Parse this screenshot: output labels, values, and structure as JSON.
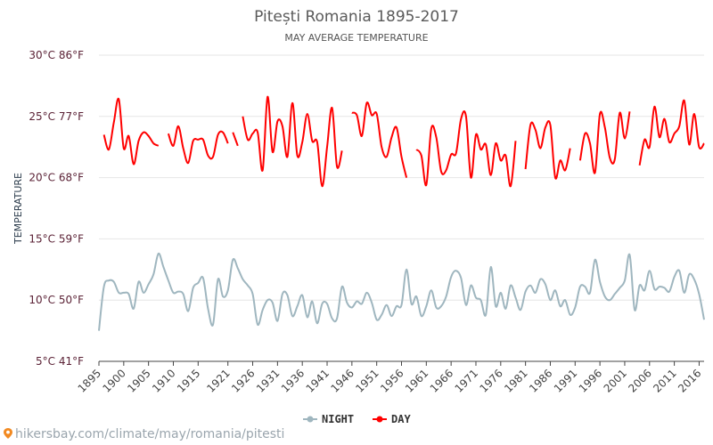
{
  "chart_data": {
    "type": "line",
    "title": "Pitești Romania 1895-2017",
    "subtitle": "MAY AVERAGE TEMPERATURE",
    "ylabel": "TEMPERATURE",
    "ylim": [
      5,
      30
    ],
    "xlim": [
      1895,
      2017
    ],
    "y_ticks": [
      {
        "value": 30,
        "label": "30°C 86°F"
      },
      {
        "value": 25,
        "label": "25°C 77°F"
      },
      {
        "value": 20,
        "label": "20°C 68°F"
      },
      {
        "value": 15,
        "label": "15°C 59°F"
      },
      {
        "value": 10,
        "label": "10°C 50°F"
      },
      {
        "value": 5,
        "label": "5°C 41°F"
      }
    ],
    "x_ticks": [
      "1895",
      "1900",
      "1905",
      "1910",
      "1915",
      "1921",
      "1926",
      "1931",
      "1936",
      "1941",
      "1946",
      "1951",
      "1956",
      "1961",
      "1966",
      "1971",
      "1976",
      "1981",
      "1986",
      "1991",
      "1996",
      "2001",
      "2006",
      "2011",
      "2016"
    ],
    "legend_position": "bottom-center",
    "grid": true,
    "series": [
      {
        "name": "NIGHT",
        "color": "#9fb6bf",
        "x": [
          1895,
          1896,
          1897,
          1898,
          1899,
          1900,
          1901,
          1902,
          1903,
          1904,
          1905,
          1906,
          1907,
          1908,
          1909,
          1910,
          1911,
          1912,
          1913,
          1914,
          1915,
          1916,
          1917,
          1918,
          1919,
          1920,
          1921,
          1922,
          1923,
          1924,
          1925,
          1926,
          1927,
          1928,
          1929,
          1930,
          1931,
          1932,
          1933,
          1934,
          1935,
          1936,
          1937,
          1938,
          1939,
          1940,
          1941,
          1942,
          1943,
          1944,
          1945,
          1946,
          1947,
          1948,
          1949,
          1950,
          1951,
          1952,
          1953,
          1954,
          1955,
          1956,
          1957,
          1958,
          1959,
          1960,
          1961,
          1962,
          1963,
          1964,
          1965,
          1966,
          1967,
          1968,
          1969,
          1970,
          1971,
          1972,
          1973,
          1974,
          1975,
          1976,
          1977,
          1978,
          1979,
          1980,
          1981,
          1982,
          1983,
          1984,
          1985,
          1986,
          1987,
          1988,
          1989,
          1990,
          1991,
          1992,
          1993,
          1994,
          1995,
          1996,
          1997,
          1998,
          1999,
          2000,
          2001,
          2002,
          2003,
          2004,
          2005,
          2006,
          2007,
          2008,
          2009,
          2010,
          2011,
          2012,
          2013,
          2014,
          2015,
          2016,
          2017
        ],
        "values": [
          7.5,
          11.1,
          11.6,
          11.5,
          10.6,
          10.6,
          10.5,
          9.3,
          11.5,
          10.6,
          11.3,
          12.1,
          13.8,
          12.7,
          11.6,
          10.6,
          10.7,
          10.5,
          9.1,
          11.0,
          11.4,
          11.8,
          9.3,
          8.0,
          11.7,
          10.3,
          10.8,
          13.3,
          12.6,
          11.7,
          11.2,
          10.5,
          8.0,
          9.2,
          10.0,
          9.8,
          8.3,
          10.5,
          10.4,
          8.7,
          9.5,
          10.4,
          8.6,
          9.9,
          8.1,
          9.7,
          9.7,
          8.5,
          8.5,
          11.1,
          9.8,
          9.4,
          9.9,
          9.7,
          10.6,
          9.8,
          8.4,
          8.8,
          9.6,
          8.7,
          9.5,
          9.6,
          12.5,
          9.7,
          10.3,
          8.7,
          9.5,
          10.8,
          9.4,
          9.5,
          10.3,
          11.9,
          12.4,
          11.8,
          9.6,
          11.2,
          10.2,
          10.0,
          8.8,
          12.7,
          9.5,
          10.6,
          9.3,
          11.2,
          10.2,
          9.2,
          10.7,
          11.2,
          10.6,
          11.7,
          11.3,
          10.0,
          10.8,
          9.5,
          10.0,
          8.8,
          9.4,
          11.1,
          11.1,
          10.6,
          13.3,
          11.5,
          10.3,
          10.0,
          10.5,
          11.0,
          11.6,
          13.7,
          9.2,
          11.2,
          10.8,
          12.4,
          10.9,
          11.1,
          11.0,
          10.7,
          11.9,
          12.4,
          10.6,
          12.1,
          11.7,
          10.5,
          8.4
        ]
      },
      {
        "name": "DAY",
        "color": "#ff0000",
        "segments": [
          {
            "x": [
              1896,
              1897,
              1898,
              1899,
              1900,
              1901,
              1902,
              1903,
              1904,
              1905,
              1906,
              1907
            ],
            "values": [
              23.5,
              22.3,
              24.5,
              26.4,
              22.4,
              23.4,
              21.1,
              23.0,
              23.7,
              23.4,
              22.8,
              22.6
            ]
          },
          {
            "x": [
              1909,
              1910,
              1911,
              1912,
              1913,
              1914,
              1915,
              1916,
              1917,
              1918,
              1919,
              1920,
              1921,
              1922,
              1923
            ],
            "values": [
              23.6,
              22.6,
              24.2,
              22.4,
              21.2,
              23.0,
              23.1,
              23.1,
              21.8,
              21.7,
              23.5,
              23.7,
              22.8,
              null,
              null
            ]
          },
          {
            "x": [
              1922,
              1923
            ],
            "values": [
              23.7,
              22.6
            ]
          },
          {
            "x": [
              1924,
              1925,
              1926,
              1927,
              1928,
              1929,
              1930,
              1931,
              1932,
              1933,
              1934,
              1935,
              1936,
              1937,
              1938,
              1939,
              1940,
              1941,
              1942,
              1943,
              1944
            ],
            "values": [
              25.0,
              23.1,
              23.6,
              23.7,
              20.6,
              26.6,
              22.1,
              24.6,
              24.2,
              21.7,
              26.1,
              21.8,
              22.9,
              25.2,
              23.0,
              22.9,
              19.3,
              22.5,
              25.7,
              20.9,
              22.2
            ]
          },
          {
            "x": [
              1946,
              1947,
              1948,
              1949,
              1950,
              1951,
              1952,
              1953,
              1954,
              1955,
              1956,
              1957,
              1958
            ],
            "values": [
              25.3,
              25.1,
              23.4,
              26.1,
              25.1,
              25.2,
              22.5,
              21.7,
              23.3,
              24.1,
              21.7,
              20.0,
              null
            ]
          },
          {
            "x": [
              1959,
              1960,
              1961,
              1962,
              1963,
              1964,
              1965,
              1966,
              1967,
              1968,
              1969,
              1970,
              1971,
              1972,
              1973,
              1974,
              1975,
              1976,
              1977,
              1978,
              1979
            ],
            "values": [
              22.3,
              21.8,
              19.4,
              24.0,
              23.3,
              20.5,
              20.6,
              21.9,
              22.0,
              24.8,
              25.0,
              20.0,
              23.5,
              22.3,
              22.7,
              20.2,
              22.8,
              21.4,
              21.8,
              19.3,
              23.0
            ]
          },
          {
            "x": [
              1981,
              1982,
              1983,
              1984,
              1985,
              1986,
              1987,
              1988,
              1989,
              1990
            ],
            "values": [
              20.7,
              24.3,
              23.9,
              22.4,
              24.1,
              24.3,
              20.0,
              21.4,
              20.6,
              22.4
            ]
          },
          {
            "x": [
              1992,
              1993,
              1994,
              1995,
              1996,
              1997,
              1998,
              1999,
              2000,
              2001,
              2002
            ],
            "values": [
              21.4,
              23.6,
              22.8,
              20.4,
              25.2,
              24.1,
              21.6,
              21.5,
              25.3,
              23.2,
              25.4
            ]
          },
          {
            "x": [
              2004,
              2005,
              2006,
              2007,
              2008,
              2009,
              2010,
              2011,
              2012,
              2013,
              2014,
              2015,
              2016,
              2017
            ],
            "values": [
              21.0,
              23.1,
              22.5,
              25.8,
              23.3,
              24.8,
              22.9,
              23.6,
              24.2,
              26.3,
              22.7,
              25.2,
              22.5,
              22.8
            ]
          }
        ]
      }
    ],
    "footer_text": "hikersbay.com/climate/may/romania/pitesti"
  }
}
